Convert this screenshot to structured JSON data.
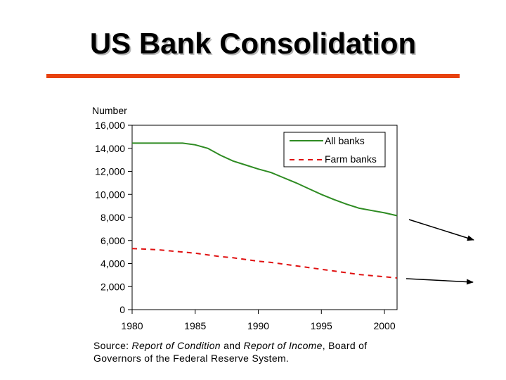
{
  "slide": {
    "title": "US Bank Consolidation",
    "accent_color": "#e8420f"
  },
  "source": {
    "prefix": "Source: ",
    "report1": "Report of Condition",
    "and": " and ",
    "report2": "Report of Income",
    "rest": ", Board of Governors of the Federal Reserve System."
  },
  "chart_data": {
    "type": "line",
    "ylabel": "Number",
    "xlim": [
      1980,
      2001
    ],
    "ylim": [
      0,
      16000
    ],
    "x_ticks": [
      1980,
      1985,
      1990,
      1995,
      2000
    ],
    "y_ticks": [
      0,
      2000,
      4000,
      6000,
      8000,
      10000,
      12000,
      14000,
      16000
    ],
    "y_tick_labels": [
      "0",
      "2,000",
      "4,000",
      "6,000",
      "8,000",
      "10,000",
      "12,000",
      "14,000",
      "16,000"
    ],
    "x_tick_labels": [
      "1980",
      "1985",
      "1990",
      "1995",
      "2000"
    ],
    "grid": false,
    "legend_position": "top-right",
    "series": [
      {
        "name": "All banks",
        "color": "#2e8b22",
        "style": "solid",
        "x": [
          1980,
          1981,
          1982,
          1983,
          1984,
          1985,
          1986,
          1987,
          1988,
          1989,
          1990,
          1991,
          1992,
          1993,
          1994,
          1995,
          1996,
          1997,
          1998,
          1999,
          2000,
          2001
        ],
        "y": [
          14450,
          14450,
          14450,
          14450,
          14450,
          14300,
          14000,
          13400,
          12900,
          12550,
          12200,
          11900,
          11450,
          11000,
          10500,
          10000,
          9550,
          9150,
          8800,
          8600,
          8400,
          8150
        ]
      },
      {
        "name": "Farm banks",
        "color": "#e01010",
        "style": "dashed",
        "x": [
          1980,
          1981,
          1982,
          1983,
          1984,
          1985,
          1986,
          1987,
          1988,
          1989,
          1990,
          1991,
          1992,
          1993,
          1994,
          1995,
          1996,
          1997,
          1998,
          1999,
          2000,
          2001
        ],
        "y": [
          5300,
          5250,
          5200,
          5100,
          5000,
          4900,
          4750,
          4600,
          4500,
          4350,
          4200,
          4100,
          3950,
          3800,
          3650,
          3500,
          3350,
          3200,
          3050,
          2950,
          2850,
          2750
        ]
      }
    ]
  }
}
